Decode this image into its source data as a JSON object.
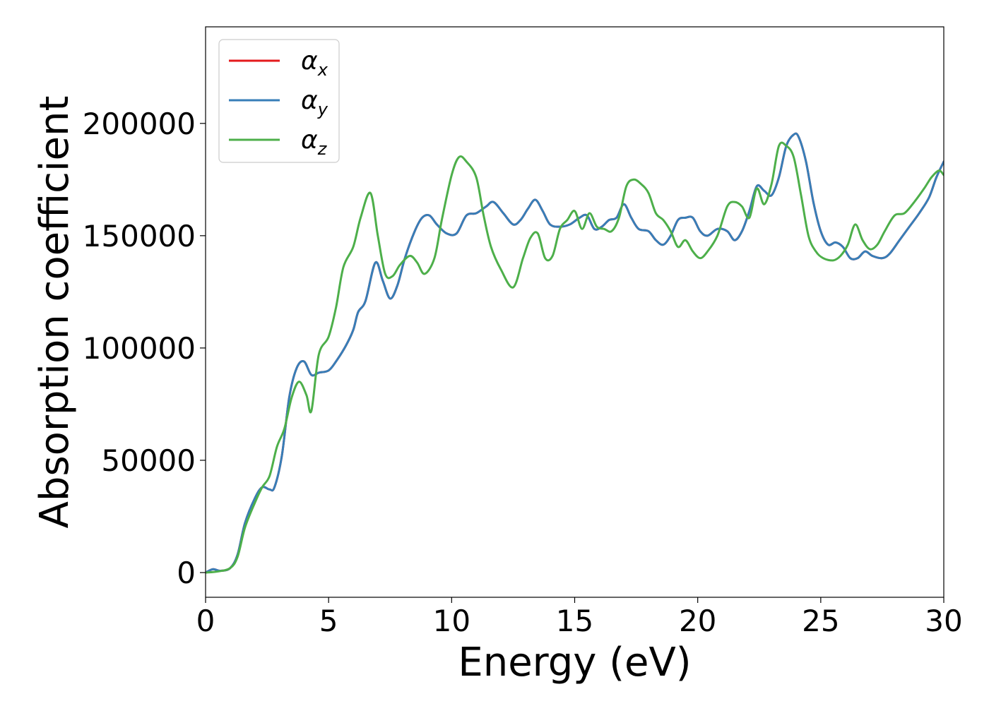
{
  "chart_data": {
    "type": "line",
    "title": "",
    "xlabel": "Energy (eV)",
    "ylabel": "Absorption coefficient",
    "xlim": [
      0,
      30
    ],
    "ylim": [
      -11000,
      243000
    ],
    "x_ticks": [
      0,
      5,
      10,
      15,
      20,
      25,
      30
    ],
    "y_ticks": [
      0,
      50000,
      100000,
      150000,
      200000
    ],
    "grid": false,
    "legend_position": "top-left",
    "series": [
      {
        "name": "αx",
        "symbol": "α",
        "subscript": "x",
        "color": "#e41a1c",
        "x": [
          0,
          0.3,
          0.6,
          1.0,
          1.3,
          1.6,
          2.0,
          2.3,
          2.6,
          2.8,
          3.1,
          3.4,
          3.7,
          4.0,
          4.3,
          4.6,
          5.0,
          5.3,
          5.7,
          6.0,
          6.2,
          6.5,
          6.9,
          7.2,
          7.5,
          7.8,
          8.1,
          8.5,
          8.8,
          9.1,
          9.4,
          9.8,
          10.2,
          10.6,
          11.0,
          11.4,
          11.7,
          12.1,
          12.5,
          12.8,
          13.1,
          13.4,
          13.7,
          14.0,
          14.4,
          14.8,
          15.2,
          15.5,
          15.8,
          16.1,
          16.4,
          16.7,
          17.0,
          17.3,
          17.6,
          18.0,
          18.3,
          18.6,
          18.9,
          19.2,
          19.5,
          19.8,
          20.1,
          20.4,
          20.8,
          21.2,
          21.5,
          21.8,
          22.1,
          22.4,
          22.7,
          23.0,
          23.3,
          23.6,
          23.9,
          24.1,
          24.4,
          24.7,
          25.0,
          25.3,
          25.6,
          25.9,
          26.2,
          26.5,
          26.8,
          27.1,
          27.5,
          27.8,
          28.2,
          28.6,
          29.0,
          29.4,
          29.7,
          30.0
        ],
        "values": [
          0,
          1500,
          800,
          2000,
          8000,
          22000,
          33000,
          38000,
          37000,
          38000,
          52000,
          78000,
          91000,
          94000,
          88000,
          89000,
          90000,
          94000,
          101000,
          108000,
          116000,
          121000,
          138000,
          130000,
          122000,
          128000,
          140000,
          152000,
          158000,
          159000,
          155000,
          151000,
          151000,
          159000,
          160000,
          163000,
          165000,
          160000,
          155000,
          157000,
          162000,
          166000,
          161000,
          155000,
          154000,
          155000,
          158000,
          159000,
          153000,
          154000,
          157000,
          158000,
          164000,
          158000,
          153000,
          152000,
          148000,
          146000,
          150000,
          157000,
          158000,
          158000,
          152000,
          150000,
          153000,
          152000,
          148000,
          152000,
          161000,
          172000,
          170000,
          168000,
          176000,
          190000,
          195000,
          194000,
          183000,
          165000,
          152000,
          146000,
          147000,
          145000,
          140000,
          140000,
          143000,
          141000,
          140000,
          142000,
          148000,
          154000,
          160000,
          167000,
          176000,
          183000
        ]
      },
      {
        "name": "αy",
        "symbol": "α",
        "subscript": "y",
        "color": "#377eb8",
        "x": [
          0,
          0.3,
          0.6,
          1.0,
          1.3,
          1.6,
          2.0,
          2.3,
          2.6,
          2.8,
          3.1,
          3.4,
          3.7,
          4.0,
          4.3,
          4.6,
          5.0,
          5.3,
          5.7,
          6.0,
          6.2,
          6.5,
          6.9,
          7.2,
          7.5,
          7.8,
          8.1,
          8.5,
          8.8,
          9.1,
          9.4,
          9.8,
          10.2,
          10.6,
          11.0,
          11.4,
          11.7,
          12.1,
          12.5,
          12.8,
          13.1,
          13.4,
          13.7,
          14.0,
          14.4,
          14.8,
          15.2,
          15.5,
          15.8,
          16.1,
          16.4,
          16.7,
          17.0,
          17.3,
          17.6,
          18.0,
          18.3,
          18.6,
          18.9,
          19.2,
          19.5,
          19.8,
          20.1,
          20.4,
          20.8,
          21.2,
          21.5,
          21.8,
          22.1,
          22.4,
          22.7,
          23.0,
          23.3,
          23.6,
          23.9,
          24.1,
          24.4,
          24.7,
          25.0,
          25.3,
          25.6,
          25.9,
          26.2,
          26.5,
          26.8,
          27.1,
          27.5,
          27.8,
          28.2,
          28.6,
          29.0,
          29.4,
          29.7,
          30.0
        ],
        "values": [
          0,
          1500,
          800,
          2000,
          8000,
          22000,
          33000,
          38000,
          37000,
          38000,
          52000,
          78000,
          91000,
          94000,
          88000,
          89000,
          90000,
          94000,
          101000,
          108000,
          116000,
          121000,
          138000,
          130000,
          122000,
          128000,
          140000,
          152000,
          158000,
          159000,
          155000,
          151000,
          151000,
          159000,
          160000,
          163000,
          165000,
          160000,
          155000,
          157000,
          162000,
          166000,
          161000,
          155000,
          154000,
          155000,
          158000,
          159000,
          153000,
          154000,
          157000,
          158000,
          164000,
          158000,
          153000,
          152000,
          148000,
          146000,
          150000,
          157000,
          158000,
          158000,
          152000,
          150000,
          153000,
          152000,
          148000,
          152000,
          161000,
          172000,
          170000,
          168000,
          176000,
          190000,
          195000,
          194000,
          183000,
          165000,
          152000,
          146000,
          147000,
          145000,
          140000,
          140000,
          143000,
          141000,
          140000,
          142000,
          148000,
          154000,
          160000,
          167000,
          176000,
          183000
        ]
      },
      {
        "name": "αz",
        "symbol": "α",
        "subscript": "z",
        "color": "#4daf4a",
        "x": [
          0,
          0.5,
          1.0,
          1.3,
          1.6,
          2.0,
          2.3,
          2.6,
          2.9,
          3.2,
          3.5,
          3.8,
          4.1,
          4.3,
          4.6,
          5.0,
          5.3,
          5.6,
          6.0,
          6.3,
          6.7,
          7.0,
          7.3,
          7.6,
          7.9,
          8.3,
          8.6,
          8.9,
          9.3,
          9.6,
          10.0,
          10.3,
          10.6,
          11.0,
          11.3,
          11.6,
          12.0,
          12.5,
          12.9,
          13.2,
          13.5,
          13.8,
          14.1,
          14.4,
          14.7,
          15.0,
          15.3,
          15.6,
          15.9,
          16.2,
          16.5,
          16.8,
          17.1,
          17.4,
          17.7,
          18.0,
          18.3,
          18.6,
          18.9,
          19.2,
          19.5,
          19.8,
          20.1,
          20.4,
          20.8,
          21.2,
          21.5,
          21.8,
          22.1,
          22.4,
          22.7,
          23.0,
          23.3,
          23.6,
          23.9,
          24.2,
          24.5,
          24.8,
          25.1,
          25.5,
          25.8,
          26.1,
          26.4,
          26.7,
          27.0,
          27.3,
          27.6,
          28.0,
          28.4,
          28.8,
          29.2,
          29.5,
          29.8,
          30.0
        ],
        "values": [
          0,
          500,
          2000,
          7000,
          20000,
          31000,
          38000,
          43000,
          56000,
          64000,
          78000,
          85000,
          79000,
          72000,
          97000,
          105000,
          118000,
          136000,
          145000,
          158000,
          169000,
          150000,
          133000,
          132000,
          137000,
          141000,
          138000,
          133000,
          140000,
          157000,
          177000,
          185000,
          183000,
          176000,
          159000,
          145000,
          135000,
          127000,
          140000,
          149000,
          151000,
          140000,
          141000,
          153000,
          157000,
          161000,
          153000,
          160000,
          154000,
          153000,
          152000,
          158000,
          172000,
          175000,
          173000,
          169000,
          160000,
          157000,
          152000,
          145000,
          148000,
          143000,
          140000,
          143000,
          150000,
          163000,
          165000,
          163000,
          158000,
          171000,
          164000,
          173000,
          190000,
          190000,
          185000,
          168000,
          150000,
          143000,
          140000,
          139000,
          141000,
          146000,
          155000,
          148000,
          144000,
          146000,
          152000,
          159000,
          160000,
          165000,
          171000,
          176000,
          179000,
          177000
        ]
      }
    ]
  }
}
